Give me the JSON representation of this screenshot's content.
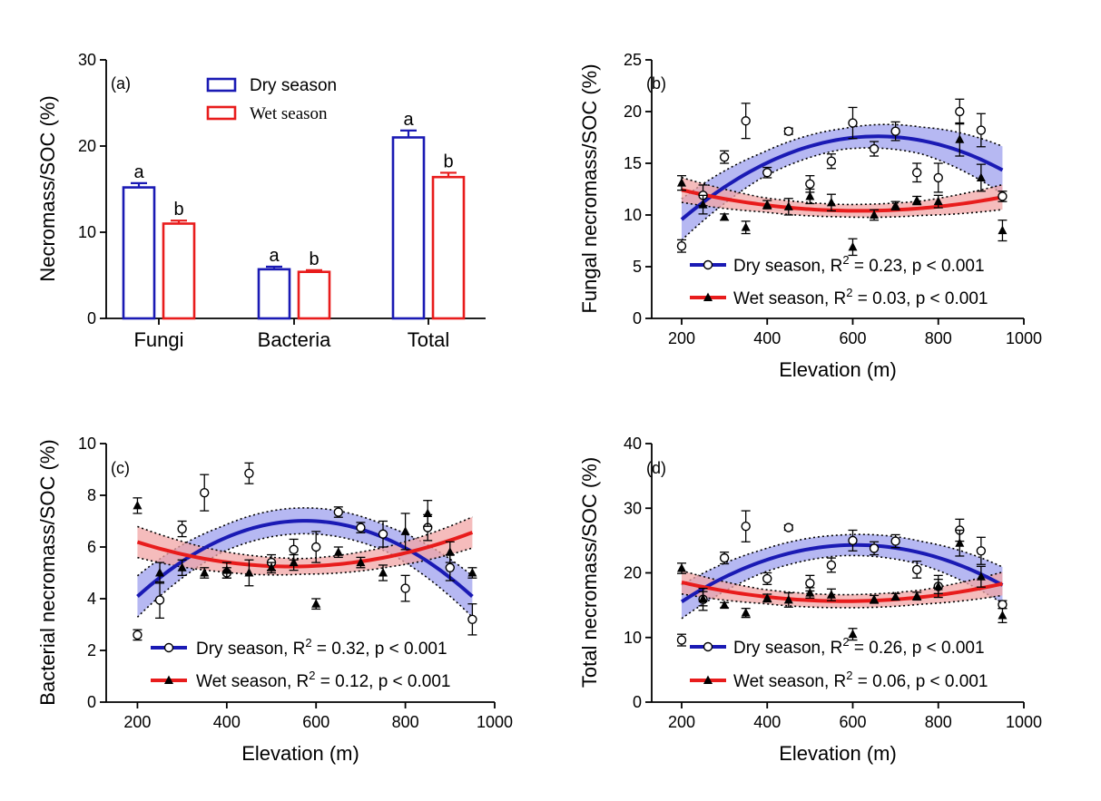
{
  "colors": {
    "dry": "#1a1ab4",
    "dry_band": "#9ea0ee",
    "wet": "#e81c1c",
    "wet_band": "#f2a6a6",
    "axis": "#000000"
  },
  "chart_data": [
    {
      "panel": "(a)",
      "type": "bar",
      "ylabel": "Necromass/SOC (%)",
      "ylim": [
        0,
        30
      ],
      "yticks": [
        0,
        10,
        20,
        30
      ],
      "categories": [
        "Fungi",
        "Bacteria",
        "Total"
      ],
      "legend_position": "top-center",
      "series": [
        {
          "name": "Dry season",
          "color_key": "dry",
          "values": [
            15.2,
            5.7,
            21.0
          ],
          "errors": [
            0.5,
            0.3,
            0.8
          ],
          "letters": [
            "a",
            "a",
            "a"
          ]
        },
        {
          "name": "Wet season",
          "color_key": "wet",
          "values": [
            11.0,
            5.4,
            16.4
          ],
          "errors": [
            0.35,
            0.2,
            0.5
          ],
          "letters": [
            "b",
            "b",
            "b"
          ]
        }
      ]
    },
    {
      "panel": "(b)",
      "type": "scatter",
      "xlabel": "Elevation (m)",
      "ylabel": "Fungal necromass/SOC (%)",
      "xlim": [
        130,
        1000
      ],
      "xticks": [
        200,
        400,
        600,
        800,
        1000
      ],
      "ylim": [
        0,
        25
      ],
      "yticks": [
        0,
        5,
        10,
        15,
        20,
        25
      ],
      "legend_position": "bottom-right",
      "series": [
        {
          "name": "Dry season",
          "legend": "Dry season, R",
          "stat": " = 0.23, p < 0.001",
          "color_key": "dry",
          "band_key": "dry_band",
          "marker": "circle",
          "x": [
            200,
            250,
            300,
            350,
            400,
            450,
            500,
            550,
            600,
            650,
            700,
            750,
            800,
            850,
            900,
            950
          ],
          "y": [
            7.0,
            11.9,
            15.6,
            19.1,
            14.1,
            18.1,
            13.0,
            15.2,
            18.9,
            16.4,
            18.1,
            14.1,
            13.6,
            20.0,
            18.2,
            11.8
          ],
          "err": [
            0.6,
            1.0,
            0.6,
            1.7,
            0.5,
            0.3,
            0.8,
            0.7,
            1.5,
            0.7,
            0.9,
            0.9,
            1.4,
            1.2,
            1.6,
            0.5
          ],
          "fit": [
            -3.833e-05,
            0.05045,
            1.004
          ],
          "band_hw": [
            2.0,
            1.2,
            1.0,
            1.3,
            2.3
          ]
        },
        {
          "name": "Wet season",
          "legend": "Wet season, R",
          "stat": " = 0.03, p < 0.001",
          "color_key": "wet",
          "band_key": "wet_band",
          "marker": "triangle",
          "x": [
            200,
            250,
            300,
            350,
            400,
            450,
            500,
            550,
            600,
            650,
            700,
            750,
            800,
            850,
            900,
            950
          ],
          "y": [
            13.1,
            11.0,
            9.8,
            8.8,
            11.0,
            10.8,
            11.8,
            11.2,
            6.9,
            10.0,
            10.9,
            11.4,
            11.3,
            17.3,
            13.6,
            8.5
          ],
          "err": [
            0.7,
            0.9,
            0.3,
            0.6,
            0.4,
            0.8,
            0.7,
            0.8,
            0.8,
            0.5,
            0.4,
            0.4,
            0.6,
            1.6,
            1.3,
            1.0
          ],
          "fit": [
            1.178e-05,
            -0.01447,
            14.846
          ],
          "band_hw": [
            1.2,
            0.7,
            0.6,
            0.7,
            1.2
          ]
        }
      ]
    },
    {
      "panel": "(c)",
      "type": "scatter",
      "xlabel": "Elevation (m)",
      "ylabel": "Bacterial necromass/SOC (%)",
      "xlim": [
        130,
        1000
      ],
      "xticks": [
        200,
        400,
        600,
        800,
        1000
      ],
      "ylim": [
        0,
        10
      ],
      "yticks": [
        0,
        2,
        4,
        6,
        8,
        10
      ],
      "legend_position": "bottom-right",
      "series": [
        {
          "name": "Dry season",
          "legend": "Dry season, R",
          "stat": " = 0.32, p < 0.001",
          "color_key": "dry",
          "band_key": "dry_band",
          "marker": "circle",
          "x": [
            200,
            250,
            300,
            350,
            400,
            450,
            500,
            550,
            600,
            650,
            700,
            750,
            800,
            850,
            900,
            950
          ],
          "y": [
            2.6,
            3.95,
            6.7,
            8.1,
            5.0,
            8.85,
            5.4,
            5.9,
            6.0,
            7.35,
            6.75,
            6.5,
            4.4,
            6.75,
            5.2,
            3.2
          ],
          "err": [
            0.2,
            0.7,
            0.3,
            0.7,
            0.2,
            0.4,
            0.3,
            0.4,
            0.6,
            0.2,
            0.2,
            0.5,
            0.5,
            0.5,
            0.5,
            0.6
          ],
          "fit": [
            -2.081e-05,
            0.02393,
            0.1338
          ],
          "band_hw": [
            0.8,
            0.5,
            0.5,
            0.5,
            0.8
          ]
        },
        {
          "name": "Wet season",
          "legend": "Wet season, R",
          "stat": " = 0.12, p < 0.001",
          "color_key": "wet",
          "band_key": "wet_band",
          "marker": "triangle",
          "x": [
            200,
            250,
            300,
            350,
            400,
            450,
            500,
            550,
            600,
            650,
            700,
            750,
            800,
            850,
            900,
            950
          ],
          "y": [
            7.6,
            5.0,
            5.2,
            5.0,
            5.1,
            5.0,
            5.2,
            5.4,
            3.8,
            5.8,
            5.4,
            5.0,
            6.6,
            7.3,
            5.8,
            5.0
          ],
          "err": [
            0.3,
            0.4,
            0.3,
            0.2,
            0.3,
            0.5,
            0.2,
            0.3,
            0.2,
            0.2,
            0.2,
            0.3,
            0.7,
            0.5,
            0.4,
            0.2
          ],
          "fit": [
            8e-06,
            -0.008708,
            7.6148
          ],
          "band_hw": [
            0.6,
            0.4,
            0.3,
            0.4,
            0.6
          ]
        }
      ]
    },
    {
      "panel": "(d)",
      "type": "scatter",
      "xlabel": "Elevation (m)",
      "ylabel": "Total necromass/SOC (%)",
      "xlim": [
        130,
        1000
      ],
      "xticks": [
        200,
        400,
        600,
        800,
        1000
      ],
      "ylim": [
        0,
        40
      ],
      "yticks": [
        0,
        10,
        20,
        30,
        40
      ],
      "legend_position": "bottom-right",
      "series": [
        {
          "name": "Dry season",
          "legend": "Dry season, R",
          "stat": " = 0.26, p < 0.001",
          "color_key": "dry",
          "band_key": "dry_band",
          "marker": "circle",
          "x": [
            200,
            250,
            300,
            350,
            400,
            450,
            500,
            550,
            600,
            650,
            700,
            750,
            800,
            850,
            900,
            950
          ],
          "y": [
            9.6,
            15.9,
            22.3,
            27.2,
            19.1,
            27.0,
            18.4,
            21.2,
            25.0,
            23.8,
            24.9,
            20.5,
            17.9,
            26.6,
            23.4,
            15.1
          ],
          "err": [
            0.9,
            1.7,
            0.9,
            2.4,
            0.9,
            0.4,
            1.2,
            1.1,
            1.6,
            1.0,
            1.0,
            1.3,
            1.7,
            1.7,
            2.1,
            0.6
          ],
          "fit": [
            -5.289e-05,
            0.06425,
            4.8
          ],
          "band_hw": [
            2.6,
            1.8,
            1.6,
            1.8,
            2.8
          ]
        },
        {
          "name": "Wet season",
          "legend": "Wet season, R",
          "stat": " = 0.06, p < 0.001",
          "color_key": "wet",
          "band_key": "wet_band",
          "marker": "triangle",
          "x": [
            200,
            250,
            300,
            350,
            400,
            450,
            500,
            550,
            600,
            650,
            700,
            750,
            800,
            850,
            900,
            950
          ],
          "y": [
            20.7,
            16.0,
            15.0,
            13.8,
            16.1,
            15.8,
            16.9,
            16.6,
            10.5,
            15.9,
            16.3,
            16.4,
            17.9,
            24.6,
            19.4,
            13.4
          ],
          "err": [
            0.8,
            1.1,
            0.4,
            0.7,
            0.6,
            1.1,
            0.8,
            0.9,
            0.9,
            0.6,
            0.5,
            0.6,
            1.1,
            2.0,
            1.6,
            1.1
          ],
          "fit": [
            2e-05,
            -0.0233,
            22.4
          ],
          "band_hw": [
            1.8,
            1.1,
            1.0,
            1.1,
            1.8
          ]
        }
      ]
    }
  ]
}
